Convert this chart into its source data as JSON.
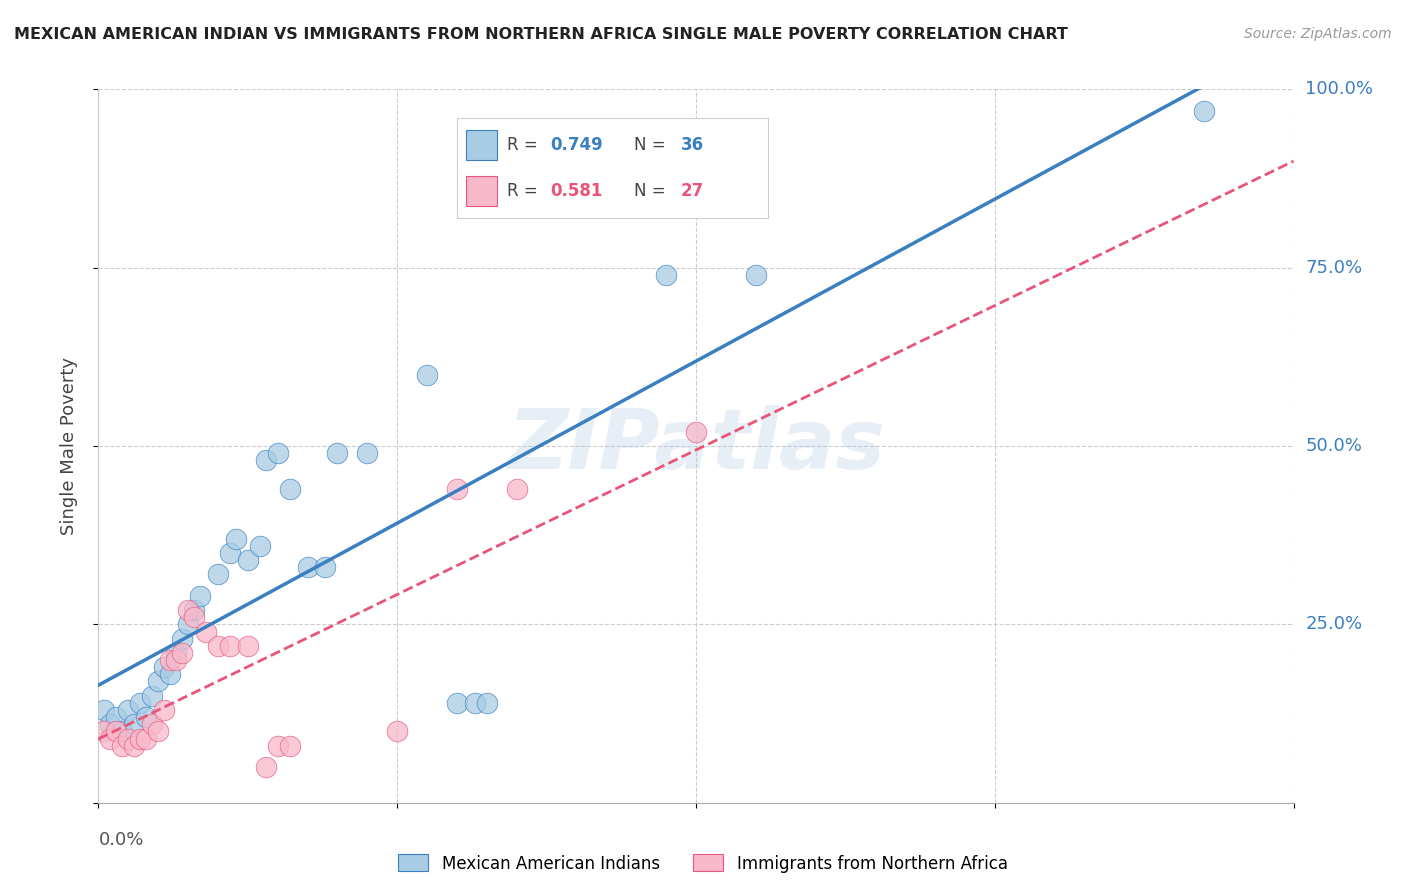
{
  "title": "MEXICAN AMERICAN INDIAN VS IMMIGRANTS FROM NORTHERN AFRICA SINGLE MALE POVERTY CORRELATION CHART",
  "source": "Source: ZipAtlas.com",
  "ylabel": "Single Male Poverty",
  "legend1_r": "0.749",
  "legend1_n": "36",
  "legend2_r": "0.581",
  "legend2_n": "27",
  "legend1_label": "Mexican American Indians",
  "legend2_label": "Immigrants from Northern Africa",
  "blue_color": "#a8cce4",
  "pink_color": "#f7b8cb",
  "line_blue": "#3a7fc1",
  "line_pink": "#e8557a",
  "watermark": "ZIPatlas",
  "xlim": [
    0,
    0.2
  ],
  "ylim": [
    0,
    1.0
  ],
  "blue_scatter": [
    [
      0.001,
      0.13
    ],
    [
      0.002,
      0.11
    ],
    [
      0.003,
      0.12
    ],
    [
      0.004,
      0.1
    ],
    [
      0.005,
      0.13
    ],
    [
      0.006,
      0.11
    ],
    [
      0.007,
      0.14
    ],
    [
      0.008,
      0.12
    ],
    [
      0.009,
      0.15
    ],
    [
      0.01,
      0.17
    ],
    [
      0.011,
      0.19
    ],
    [
      0.012,
      0.18
    ],
    [
      0.013,
      0.21
    ],
    [
      0.014,
      0.23
    ],
    [
      0.015,
      0.25
    ],
    [
      0.016,
      0.27
    ],
    [
      0.017,
      0.29
    ],
    [
      0.02,
      0.32
    ],
    [
      0.022,
      0.35
    ],
    [
      0.023,
      0.37
    ],
    [
      0.025,
      0.34
    ],
    [
      0.027,
      0.36
    ],
    [
      0.028,
      0.48
    ],
    [
      0.03,
      0.49
    ],
    [
      0.032,
      0.44
    ],
    [
      0.035,
      0.33
    ],
    [
      0.038,
      0.33
    ],
    [
      0.04,
      0.49
    ],
    [
      0.045,
      0.49
    ],
    [
      0.055,
      0.6
    ],
    [
      0.06,
      0.14
    ],
    [
      0.063,
      0.14
    ],
    [
      0.065,
      0.14
    ],
    [
      0.095,
      0.74
    ],
    [
      0.11,
      0.74
    ],
    [
      0.185,
      0.97
    ]
  ],
  "pink_scatter": [
    [
      0.001,
      0.1
    ],
    [
      0.002,
      0.09
    ],
    [
      0.003,
      0.1
    ],
    [
      0.004,
      0.08
    ],
    [
      0.005,
      0.09
    ],
    [
      0.006,
      0.08
    ],
    [
      0.007,
      0.09
    ],
    [
      0.008,
      0.09
    ],
    [
      0.009,
      0.11
    ],
    [
      0.01,
      0.1
    ],
    [
      0.011,
      0.13
    ],
    [
      0.012,
      0.2
    ],
    [
      0.013,
      0.2
    ],
    [
      0.014,
      0.21
    ],
    [
      0.015,
      0.27
    ],
    [
      0.016,
      0.26
    ],
    [
      0.018,
      0.24
    ],
    [
      0.02,
      0.22
    ],
    [
      0.022,
      0.22
    ],
    [
      0.025,
      0.22
    ],
    [
      0.028,
      0.05
    ],
    [
      0.03,
      0.08
    ],
    [
      0.032,
      0.08
    ],
    [
      0.05,
      0.1
    ],
    [
      0.06,
      0.44
    ],
    [
      0.07,
      0.44
    ],
    [
      0.1,
      0.52
    ]
  ]
}
